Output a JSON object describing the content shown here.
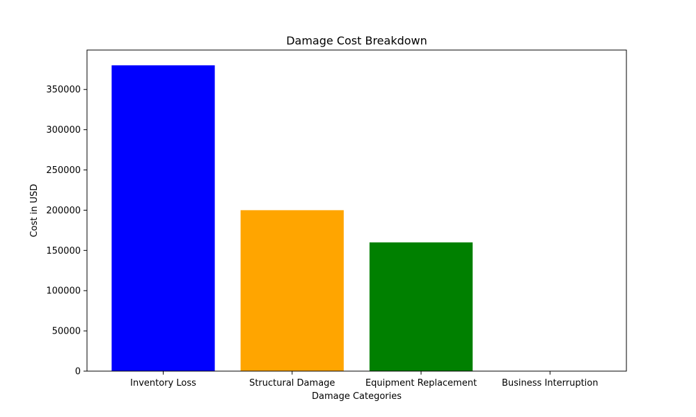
{
  "chart_data": {
    "type": "bar",
    "title": "Damage Cost Breakdown",
    "xlabel": "Damage Categories",
    "ylabel": "Cost in USD",
    "categories": [
      "Inventory Loss",
      "Structural Damage",
      "Equipment Replacement",
      "Business Interruption"
    ],
    "values": [
      380000,
      200000,
      160000,
      0
    ],
    "colors": [
      "#0000ff",
      "#ffa500",
      "#008000",
      "#ff0000"
    ],
    "ylim": [
      0,
      399000
    ],
    "yticks": [
      0,
      50000,
      100000,
      150000,
      200000,
      250000,
      300000,
      350000
    ],
    "grid": false,
    "legend": "none"
  }
}
